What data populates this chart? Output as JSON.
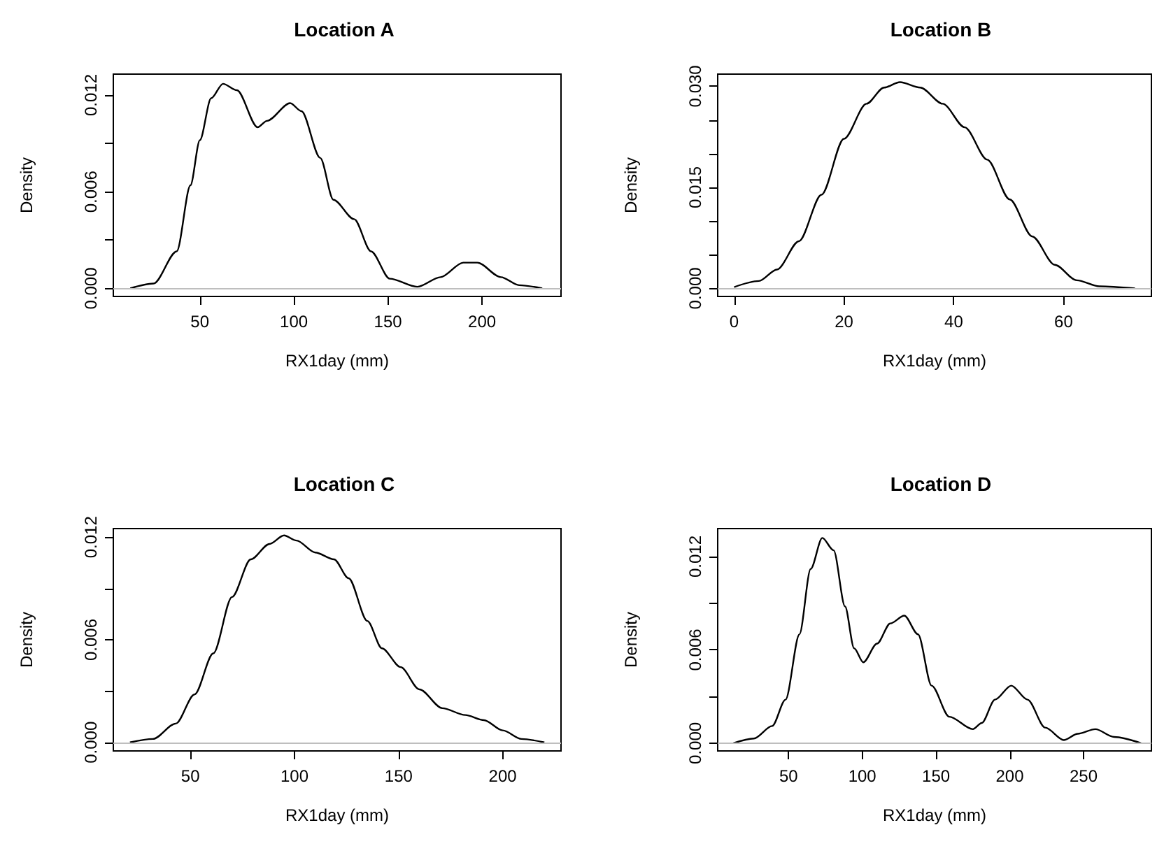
{
  "chart_data": [
    {
      "type": "line",
      "title": "Location A",
      "xlabel": "RX1day (mm)",
      "ylabel": "Density",
      "color": "#000000",
      "marker": "none",
      "line_style": "solid",
      "grid": false,
      "x": [
        13,
        25.4,
        37.7,
        45,
        50,
        56,
        62.3,
        69.7,
        80.7,
        85.7,
        98,
        104,
        114,
        121,
        132,
        141,
        151,
        165.6,
        178,
        190,
        197.5,
        210,
        219.7,
        232
      ],
      "values": [
        0,
        0.0003,
        0.0023,
        0.0064,
        0.0092,
        0.0118,
        0.0127,
        0.0123,
        0.01,
        0.0104,
        0.0115,
        0.011,
        0.0081,
        0.0055,
        0.0043,
        0.0023,
        0.0006,
        0.0001,
        0.0007,
        0.0016,
        0.0016,
        0.0007,
        0.0002,
        0
      ],
      "xlim": [
        4,
        242
      ],
      "xticks": [
        50,
        100,
        150,
        200
      ],
      "ylim": [
        -0.0005,
        0.0133
      ],
      "yticks": [
        {
          "value": 0,
          "label": "0.000"
        },
        {
          "value": 0.003,
          "label": null
        },
        {
          "value": 0.006,
          "label": "0.006"
        },
        {
          "value": 0.009,
          "label": null
        },
        {
          "value": 0.012,
          "label": "0.012"
        }
      ],
      "ref_lines": [
        {
          "axis": "y",
          "value": 0,
          "color": "#bebebe"
        }
      ]
    },
    {
      "type": "line",
      "title": "Location B",
      "xlabel": "RX1day (mm)",
      "ylabel": "Density",
      "color": "#000000",
      "marker": "none",
      "line_style": "solid",
      "grid": false,
      "x": [
        0,
        4.5,
        7.8,
        11.8,
        15.9,
        20,
        24.1,
        27.3,
        30.2,
        33.9,
        38,
        42,
        46.1,
        50.2,
        54.3,
        58.4,
        62.4,
        66.5,
        73
      ],
      "values": [
        0.0002,
        0.0011,
        0.0028,
        0.007,
        0.0139,
        0.0222,
        0.0274,
        0.0298,
        0.0306,
        0.0298,
        0.0274,
        0.0239,
        0.0191,
        0.0132,
        0.0077,
        0.0035,
        0.0012,
        0.0003,
        0
      ],
      "xlim": [
        -3,
        76
      ],
      "xticks": [
        0,
        20,
        40,
        60
      ],
      "ylim": [
        -0.0012,
        0.0318
      ],
      "yticks": [
        {
          "value": 0,
          "label": "0.000"
        },
        {
          "value": 0.005,
          "label": null
        },
        {
          "value": 0.01,
          "label": null
        },
        {
          "value": 0.015,
          "label": "0.015"
        },
        {
          "value": 0.02,
          "label": null
        },
        {
          "value": 0.025,
          "label": null
        },
        {
          "value": 0.03,
          "label": "0.030"
        }
      ],
      "ref_lines": [
        {
          "axis": "y",
          "value": 0,
          "color": "#bebebe"
        }
      ]
    },
    {
      "type": "line",
      "title": "Location C",
      "xlabel": "RX1day (mm)",
      "ylabel": "Density",
      "color": "#000000",
      "marker": "none",
      "line_style": "solid",
      "grid": false,
      "x": [
        21,
        32,
        43,
        52,
        61,
        70,
        79,
        88,
        95,
        101,
        110,
        119,
        126,
        135,
        142,
        151,
        160,
        171,
        182,
        191,
        200,
        209,
        220
      ],
      "values": [
        0,
        0.0002,
        0.0011,
        0.0028,
        0.0052,
        0.0085,
        0.0107,
        0.0116,
        0.0121,
        0.0118,
        0.0111,
        0.0107,
        0.0096,
        0.0071,
        0.0055,
        0.0044,
        0.0031,
        0.002,
        0.0016,
        0.0013,
        0.0007,
        0.0002,
        0
      ],
      "xlim": [
        13,
        228
      ],
      "xticks": [
        50,
        100,
        150,
        200
      ],
      "ylim": [
        -0.0005,
        0.0125
      ],
      "yticks": [
        {
          "value": 0,
          "label": "0.000"
        },
        {
          "value": 0.003,
          "label": null
        },
        {
          "value": 0.006,
          "label": "0.006"
        },
        {
          "value": 0.009,
          "label": null
        },
        {
          "value": 0.012,
          "label": "0.012"
        }
      ],
      "ref_lines": [
        {
          "axis": "y",
          "value": 0,
          "color": "#bebebe"
        }
      ]
    },
    {
      "type": "line",
      "title": "Location D",
      "xlabel": "RX1day (mm)",
      "ylabel": "Density",
      "color": "#000000",
      "marker": "none",
      "line_style": "solid",
      "grid": false,
      "x": [
        12.6,
        26.5,
        38.9,
        48,
        57.4,
        65,
        72.9,
        80.6,
        88.3,
        94.5,
        100.7,
        110,
        119,
        128.5,
        137.8,
        147,
        159,
        175,
        181,
        190,
        201,
        212,
        224,
        236.7,
        246,
        258,
        270.7,
        289
      ],
      "values": [
        0,
        0.0003,
        0.0011,
        0.0028,
        0.007,
        0.0112,
        0.0132,
        0.0124,
        0.0088,
        0.0061,
        0.0052,
        0.0064,
        0.0077,
        0.0082,
        0.007,
        0.0037,
        0.0017,
        0.0009,
        0.0013,
        0.0028,
        0.0037,
        0.0028,
        0.001,
        0.0002,
        0.0006,
        0.0009,
        0.0004,
        0
      ],
      "xlim": [
        2,
        296
      ],
      "xticks": [
        50,
        100,
        150,
        200,
        250
      ],
      "ylim": [
        -0.0005,
        0.0138
      ],
      "yticks": [
        {
          "value": 0,
          "label": "0.000"
        },
        {
          "value": 0.003,
          "label": null
        },
        {
          "value": 0.006,
          "label": "0.006"
        },
        {
          "value": 0.009,
          "label": null
        },
        {
          "value": 0.012,
          "label": "0.012"
        }
      ],
      "ref_lines": [
        {
          "axis": "y",
          "value": 0,
          "color": "#bebebe"
        }
      ]
    }
  ]
}
